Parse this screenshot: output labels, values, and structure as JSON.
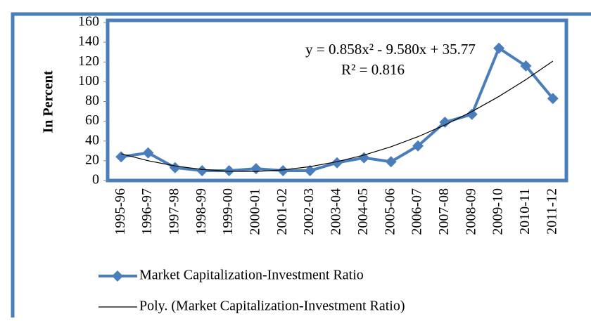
{
  "chart_data": {
    "type": "line",
    "y_label": "In Percent",
    "annotations": [
      "y = 0.858x² - 9.580x + 35.77",
      "R² = 0.816"
    ],
    "categories": [
      "1995-96",
      "1996-97",
      "1997-98",
      "1998-99",
      "1999-00",
      "2000-01",
      "2001-02",
      "2002-03",
      "2003-04",
      "2004-05",
      "2005-06",
      "2006-07",
      "2007-08",
      "2008-09",
      "2009-10",
      "2010-11",
      "2011-12"
    ],
    "series": [
      {
        "name": "Market Capitalization-Investment Ratio",
        "color": "#4a7ebb",
        "marker": "diamond",
        "values": [
          24,
          28,
          13,
          10,
          10,
          12,
          10,
          10,
          18,
          23,
          19,
          35,
          59,
          67,
          134,
          116,
          83
        ]
      },
      {
        "name": "Poly. (Market Capitalization-Investment Ratio)",
        "color": "#000000",
        "marker": "none",
        "values": [
          27.05,
          20.04,
          14.75,
          11.18,
          9.32,
          9.18,
          10.75,
          14.04,
          19.05,
          25.77,
          34.21,
          44.36,
          56.23,
          69.82,
          85.12,
          102.14,
          120.87
        ]
      }
    ],
    "ylim": [
      0,
      160
    ],
    "yticks": [
      0,
      20,
      40,
      60,
      80,
      100,
      120,
      140,
      160
    ],
    "grid": false
  }
}
